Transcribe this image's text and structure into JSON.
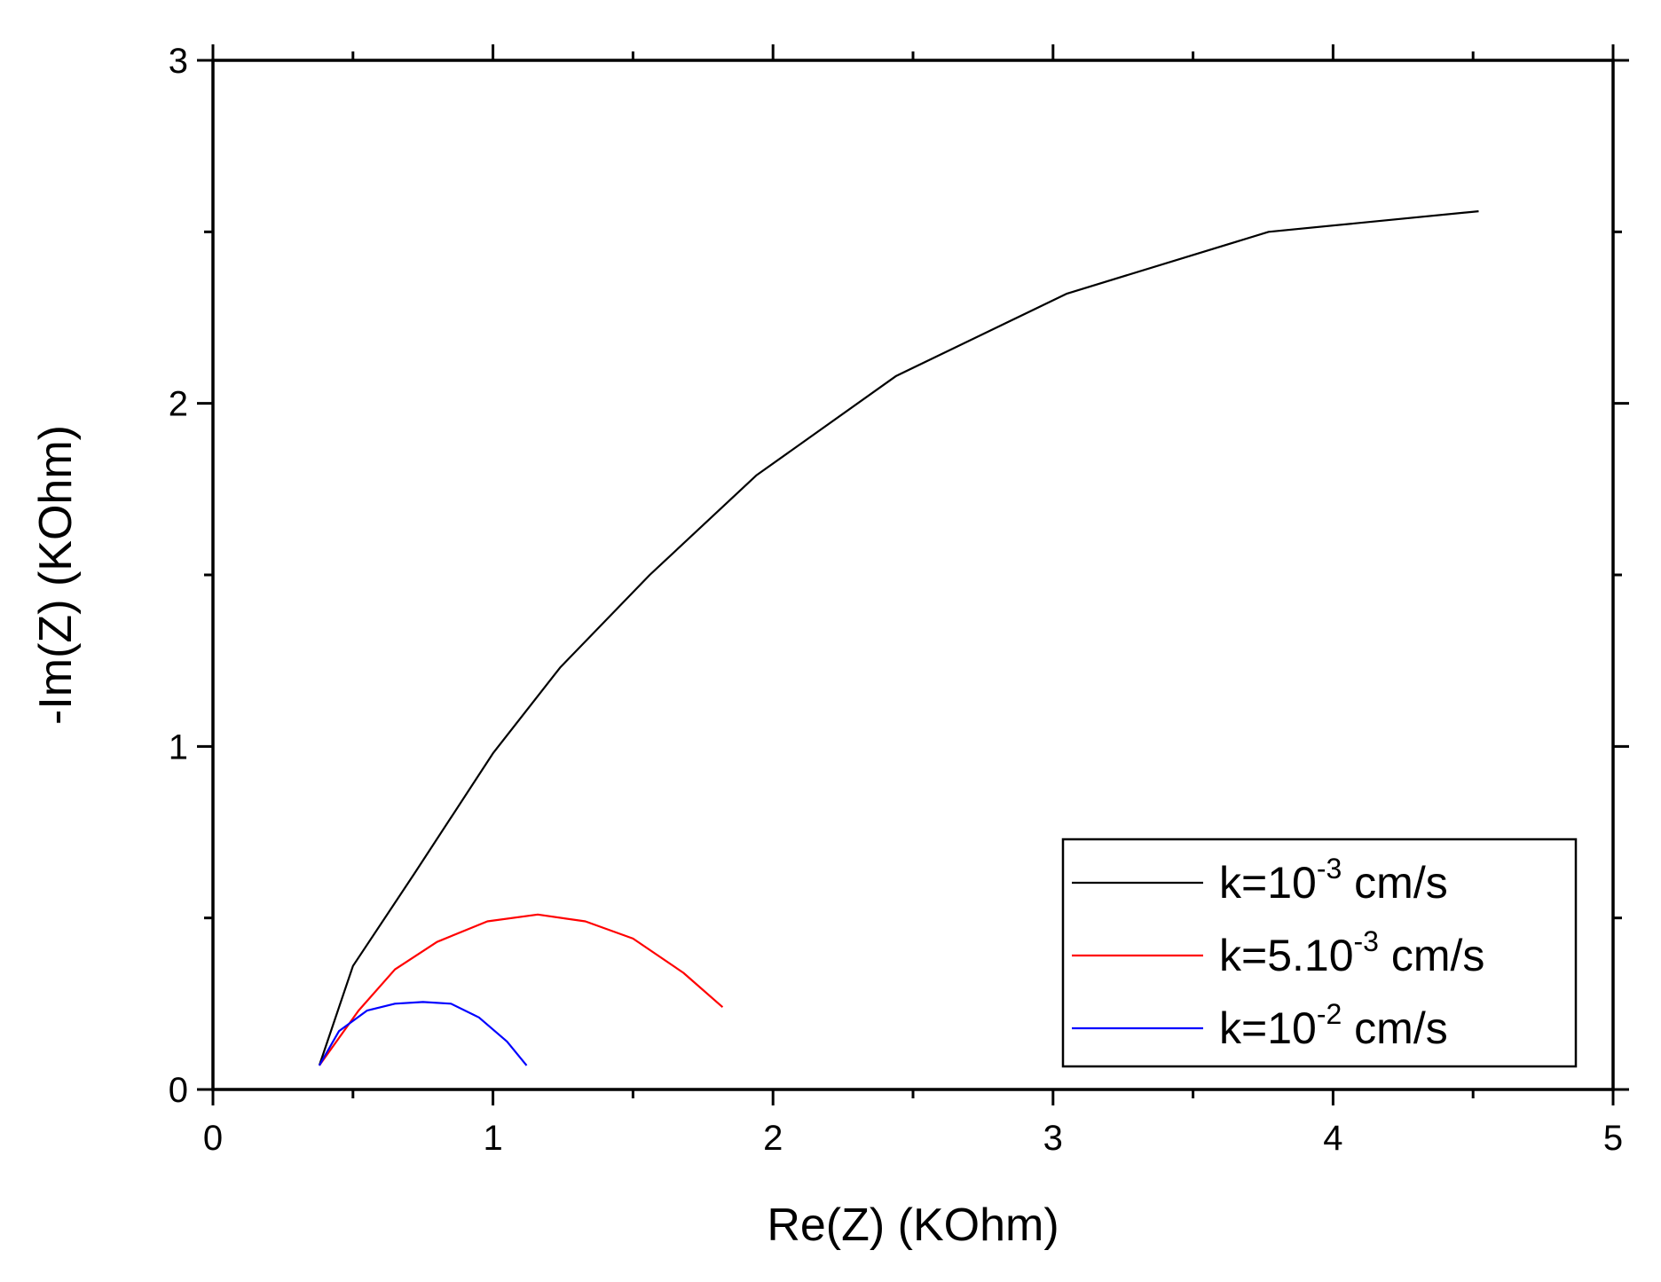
{
  "chart_data": {
    "type": "line",
    "title": "",
    "xlabel": "Re(Z) (KOhm)",
    "ylabel": "-Im(Z) (KOhm)",
    "xlim": [
      0,
      5
    ],
    "ylim": [
      0,
      3
    ],
    "x_ticks": [
      "0",
      "1",
      "2",
      "3",
      "4",
      "5"
    ],
    "y_ticks": [
      "0",
      "1",
      "2",
      "3"
    ],
    "grid": false,
    "legend_position": "bottom-right",
    "series": [
      {
        "name": "k=10-3 cm/s",
        "label_parts": [
          "k=10",
          "-3",
          " cm/s"
        ],
        "color": "#000000",
        "x": [
          0.38,
          0.5,
          0.72,
          1.0,
          1.24,
          1.56,
          1.94,
          2.44,
          3.05,
          3.77,
          4.52
        ],
        "y": [
          0.07,
          0.36,
          0.63,
          0.98,
          1.23,
          1.5,
          1.79,
          2.08,
          2.32,
          2.5,
          2.56
        ]
      },
      {
        "name": "k=5.10-3 cm/s",
        "label_parts": [
          "k=5.10",
          "-3",
          " cm/s"
        ],
        "color": "#ff0000",
        "x": [
          0.38,
          0.52,
          0.65,
          0.8,
          0.98,
          1.16,
          1.33,
          1.5,
          1.68,
          1.82
        ],
        "y": [
          0.07,
          0.23,
          0.35,
          0.43,
          0.49,
          0.51,
          0.49,
          0.44,
          0.34,
          0.24
        ]
      },
      {
        "name": "k=10-2 cm/s",
        "label_parts": [
          "k=10",
          "-2",
          " cm/s"
        ],
        "color": "#0000ff",
        "x": [
          0.38,
          0.45,
          0.55,
          0.65,
          0.75,
          0.85,
          0.95,
          1.05,
          1.12
        ],
        "y": [
          0.07,
          0.17,
          0.23,
          0.25,
          0.255,
          0.25,
          0.21,
          0.14,
          0.07
        ]
      }
    ]
  }
}
